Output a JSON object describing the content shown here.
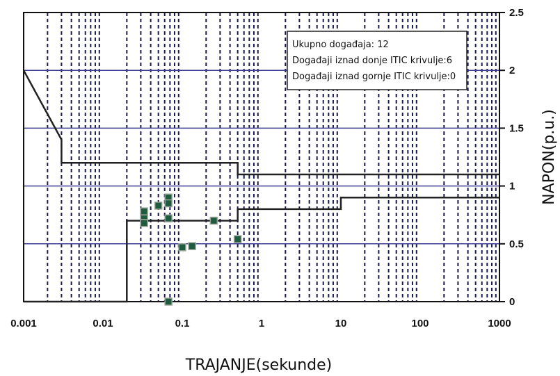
{
  "chart_data": {
    "type": "scatter",
    "x_scale": "log",
    "xlim": [
      0.001,
      1000
    ],
    "ylim": [
      0,
      2.5
    ],
    "xlabel": "TRAJANJE(sekunde)",
    "ylabel": "NAPON(p.u.)",
    "x_ticks": [
      "0.001",
      "0.01",
      "0.1",
      "1",
      "10",
      "100",
      "1000"
    ],
    "y_ticks": [
      "0",
      "0.5",
      "1",
      "1.5",
      "2",
      "2.5"
    ],
    "y_tick_values": [
      0,
      0.5,
      1,
      1.5,
      2,
      2.5
    ],
    "grid": true,
    "legend_lines": [
      "Ukupno događaja: 12",
      "Događaji iznad donje ITIC krivulje:6",
      "Događaji iznad gornje ITIC krivulje:0"
    ],
    "upper_curve": {
      "x": [
        0.001,
        0.003,
        0.003,
        0.5,
        0.5,
        1000
      ],
      "y": [
        2,
        1.4,
        1.2,
        1.2,
        1.1,
        1.1
      ]
    },
    "lower_curve": {
      "x": [
        0.001,
        0.02,
        0.02,
        0.5,
        0.5,
        10,
        10,
        1000
      ],
      "y": [
        0,
        0,
        0.7,
        0.7,
        0.8,
        0.8,
        0.9,
        0.9
      ]
    },
    "points": [
      {
        "x": 0.033,
        "y": 0.78
      },
      {
        "x": 0.033,
        "y": 0.72
      },
      {
        "x": 0.033,
        "y": 0.68
      },
      {
        "x": 0.05,
        "y": 0.83
      },
      {
        "x": 0.067,
        "y": 0.9
      },
      {
        "x": 0.067,
        "y": 0.85
      },
      {
        "x": 0.067,
        "y": 0.72
      },
      {
        "x": 0.1,
        "y": 0.47
      },
      {
        "x": 0.133,
        "y": 0.48
      },
      {
        "x": 0.25,
        "y": 0.7
      },
      {
        "x": 0.5,
        "y": 0.54
      },
      {
        "x": 0.067,
        "y": 0.0
      }
    ],
    "colors": {
      "marker_fill": "#1f5c3f",
      "marker_stroke": "#9aa69a",
      "horizontal_grid": "#3e3e96",
      "vertical_grid": "#1a1a4a",
      "curve": "#222222"
    }
  }
}
